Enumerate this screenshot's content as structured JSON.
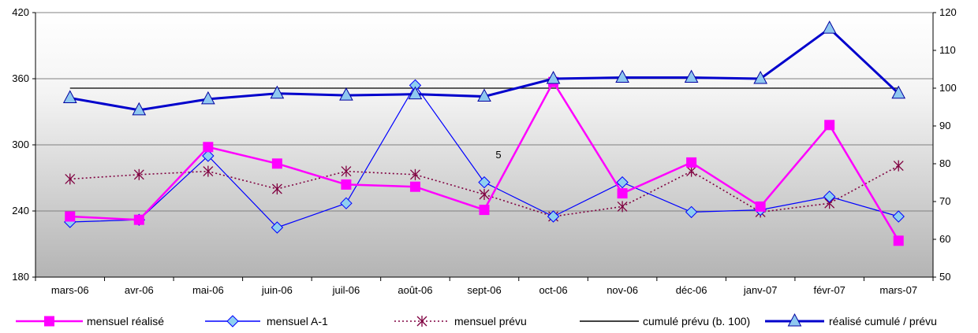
{
  "chart_data": {
    "type": "line",
    "categories": [
      "mars-06",
      "avr-06",
      "mai-06",
      "juin-06",
      "juil-06",
      "août-06",
      "sept-06",
      "oct-06",
      "nov-06",
      "déc-06",
      "janv-07",
      "févr-07",
      "mars-07"
    ],
    "y_left": {
      "min": 180,
      "max": 420,
      "ticks": [
        "180",
        "240",
        "300",
        "360",
        "420"
      ]
    },
    "y_right": {
      "min": 50,
      "max": 120,
      "ticks": [
        "50",
        "60",
        "70",
        "80",
        "90",
        "100",
        "110",
        "120"
      ]
    },
    "annotation": "5",
    "grid": "horizontal",
    "legend_position": "bottom",
    "series": [
      {
        "name": "mensuel réalisé",
        "axis": "left",
        "color": "#ff00ff",
        "marker": "square",
        "style": "solid",
        "values": [
          235,
          232,
          298,
          283,
          264,
          262,
          241,
          357,
          256,
          284,
          244,
          318,
          213
        ]
      },
      {
        "name": "mensuel A-1",
        "axis": "left",
        "color": "#0000ff",
        "marker": "diamond",
        "style": "solid",
        "values": [
          230,
          232,
          290,
          225,
          247,
          354,
          266,
          235,
          266,
          239,
          241,
          253,
          235
        ]
      },
      {
        "name": "mensuel prévu",
        "axis": "left",
        "color": "#800040",
        "marker": "star",
        "style": "dotted",
        "values": [
          269,
          273,
          276,
          260,
          276,
          273,
          255,
          235,
          244,
          276,
          239,
          247,
          281
        ]
      },
      {
        "name": "cumulé prévu (b. 100)",
        "axis": "right",
        "color": "#000000",
        "marker": "none",
        "style": "solid",
        "values": [
          100,
          100,
          100,
          100,
          100,
          100,
          100,
          100,
          100,
          100,
          100,
          100,
          100
        ]
      },
      {
        "name": "réalisé cumulé / prévu",
        "axis": "right",
        "color": "#0000cc",
        "marker": "triangle",
        "style": "thick",
        "values": [
          97.4,
          94.2,
          97.1,
          98.6,
          98.1,
          98.4,
          97.8,
          102.5,
          102.8,
          102.8,
          102.5,
          115.8,
          98.6
        ]
      }
    ]
  }
}
